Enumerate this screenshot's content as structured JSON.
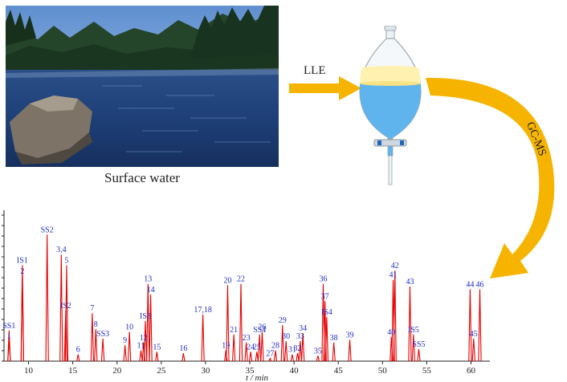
{
  "photo": {
    "caption": "Surface water"
  },
  "arrows": {
    "lle_label": "LLE",
    "gcms_label": "GC-MS"
  },
  "colors": {
    "arrow": "#f6b400",
    "peak": "#e60000",
    "peak_label": "#1f2dc8",
    "axis": "#222222"
  },
  "chart_data": {
    "type": "line",
    "title": "",
    "xlabel": "t / min",
    "ylabel": "",
    "xlim": [
      7.5,
      61.5
    ],
    "ylim": [
      0,
      100
    ],
    "x_ticks": [
      10,
      15,
      20,
      25,
      30,
      35,
      40,
      45,
      50,
      55,
      60
    ],
    "grid": false,
    "peaks": [
      {
        "label": "SS1",
        "rt": 7.8,
        "h": 23
      },
      {
        "label": "1",
        "rt": 7.8,
        "h": 15
      },
      {
        "label": "IS1",
        "rt": 9.3,
        "h": 72
      },
      {
        "label": "2",
        "rt": 9.3,
        "h": 64
      },
      {
        "label": "SS2",
        "rt": 12.1,
        "h": 95
      },
      {
        "label": "3,4",
        "rt": 13.7,
        "h": 80
      },
      {
        "label": "5",
        "rt": 14.3,
        "h": 72
      },
      {
        "label": "IS2",
        "rt": 14.2,
        "h": 38
      },
      {
        "label": "6",
        "rt": 15.6,
        "h": 5
      },
      {
        "label": "7",
        "rt": 17.2,
        "h": 36
      },
      {
        "label": "8",
        "rt": 17.6,
        "h": 24
      },
      {
        "label": "SS3",
        "rt": 18.4,
        "h": 17
      },
      {
        "label": "9",
        "rt": 20.9,
        "h": 12
      },
      {
        "label": "10",
        "rt": 21.4,
        "h": 22
      },
      {
        "label": "11",
        "rt": 22.7,
        "h": 8
      },
      {
        "label": "12",
        "rt": 23.0,
        "h": 14
      },
      {
        "label": "IS3",
        "rt": 23.2,
        "h": 30
      },
      {
        "label": "13",
        "rt": 23.5,
        "h": 58
      },
      {
        "label": "14",
        "rt": 23.8,
        "h": 50
      },
      {
        "label": "15",
        "rt": 24.5,
        "h": 7
      },
      {
        "label": "16",
        "rt": 27.5,
        "h": 6
      },
      {
        "label": "17,18",
        "rt": 29.7,
        "h": 35
      },
      {
        "label": "19",
        "rt": 32.3,
        "h": 8
      },
      {
        "label": "20",
        "rt": 32.5,
        "h": 57
      },
      {
        "label": "21",
        "rt": 33.2,
        "h": 20
      },
      {
        "label": "22",
        "rt": 34.0,
        "h": 58
      },
      {
        "label": "23",
        "rt": 34.6,
        "h": 14
      },
      {
        "label": "24",
        "rt": 35.1,
        "h": 7
      },
      {
        "label": "25",
        "rt": 35.8,
        "h": 7
      },
      {
        "label": "SS4",
        "rt": 36.1,
        "h": 20
      },
      {
        "label": "26",
        "rt": 36.4,
        "h": 22
      },
      {
        "label": "27",
        "rt": 37.3,
        "h": 2
      },
      {
        "label": "28",
        "rt": 37.9,
        "h": 8
      },
      {
        "label": "29",
        "rt": 38.7,
        "h": 27
      },
      {
        "label": "30",
        "rt": 39.1,
        "h": 15
      },
      {
        "label": "31",
        "rt": 39.8,
        "h": 5
      },
      {
        "label": "32",
        "rt": 40.4,
        "h": 6
      },
      {
        "label": "33",
        "rt": 40.7,
        "h": 15
      },
      {
        "label": "34",
        "rt": 41.0,
        "h": 21
      },
      {
        "label": "35",
        "rt": 42.7,
        "h": 4
      },
      {
        "label": "36",
        "rt": 43.3,
        "h": 58
      },
      {
        "label": "37",
        "rt": 43.5,
        "h": 45
      },
      {
        "label": "IS4",
        "rt": 43.7,
        "h": 33
      },
      {
        "label": "38",
        "rt": 44.5,
        "h": 14
      },
      {
        "label": "39",
        "rt": 46.3,
        "h": 16
      },
      {
        "label": "40",
        "rt": 51.0,
        "h": 18
      },
      {
        "label": "41",
        "rt": 51.2,
        "h": 61
      },
      {
        "label": "42",
        "rt": 51.4,
        "h": 68
      },
      {
        "label": "43",
        "rt": 53.1,
        "h": 56
      },
      {
        "label": "IS5",
        "rt": 53.5,
        "h": 20
      },
      {
        "label": "SS5",
        "rt": 54.1,
        "h": 9
      },
      {
        "label": "44",
        "rt": 59.9,
        "h": 54
      },
      {
        "label": "45",
        "rt": 60.3,
        "h": 17
      },
      {
        "label": "46",
        "rt": 61.0,
        "h": 54
      }
    ]
  }
}
